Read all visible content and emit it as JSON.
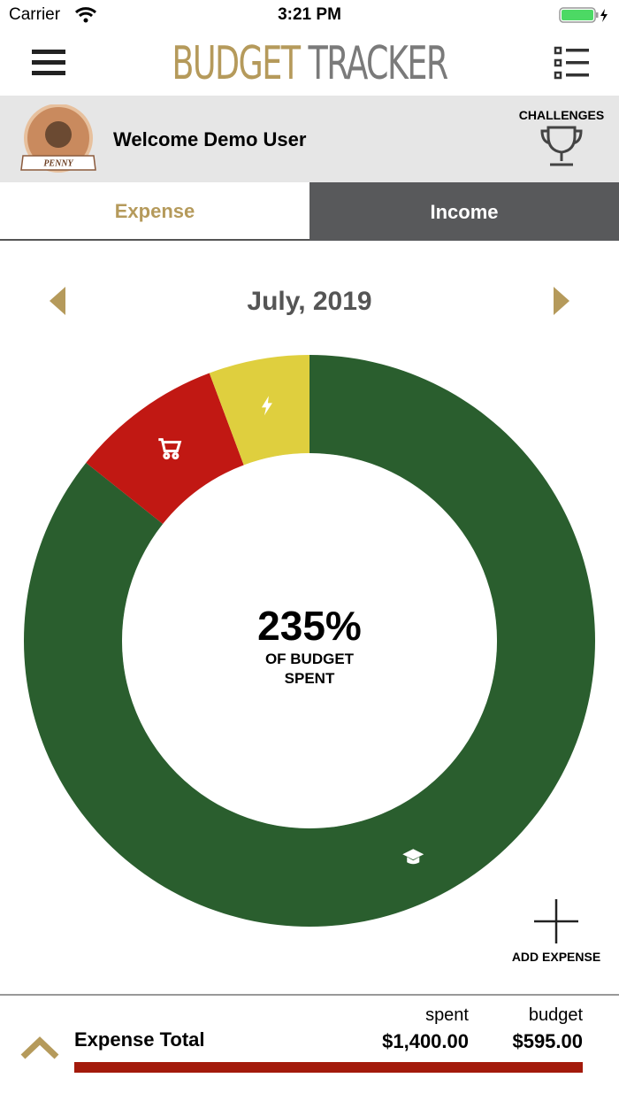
{
  "status_bar": {
    "carrier": "Carrier",
    "time": "3:21 PM"
  },
  "header": {
    "title_first": "BUDGET",
    "title_second": "TRACKER"
  },
  "profile": {
    "badge": "PENNY",
    "welcome": "Welcome Demo User",
    "challenges": "CHALLENGES"
  },
  "tabs": [
    "Expense",
    "Income"
  ],
  "month": "July, 2019",
  "chart_data": {
    "type": "donut",
    "values": [
      85.7,
      8.6,
      5.7
    ],
    "colors": [
      "#2a5e2e",
      "#c11813",
      "#dfcf3e"
    ],
    "center_value": "235%",
    "center_label": "OF BUDGET SPENT"
  },
  "add_expense": "ADD EXPENSE",
  "footer": {
    "title": "Expense Total",
    "spent_label": "spent",
    "spent": "$1,400.00",
    "budget_label": "budget",
    "budget": "$595.00"
  }
}
